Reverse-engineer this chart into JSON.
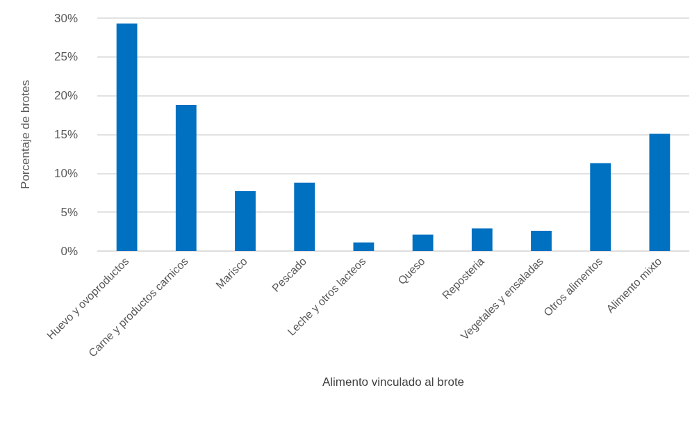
{
  "chart_data": {
    "type": "bar",
    "xlabel": "Alimento vinculado al brote",
    "ylabel": "Porcentaje de brotes",
    "categories": [
      "Huevo y ovoproductos",
      "Carne y productos carnicos",
      "Marisco",
      "Pescado",
      "Leche y otros lacteos",
      "Queso",
      "Reposteria",
      "Vegetales y ensaladas",
      "Otros alimentos",
      "Alimento mixto"
    ],
    "values": [
      29.3,
      18.8,
      7.7,
      8.8,
      1.1,
      2.1,
      2.9,
      2.6,
      11.3,
      15.1
    ],
    "color": "#0070c0",
    "ylim": [
      0,
      30
    ],
    "yticks": [
      {
        "value": 0,
        "label": "0%"
      },
      {
        "value": 5,
        "label": "5%"
      },
      {
        "value": 10,
        "label": "10%"
      },
      {
        "value": 15,
        "label": "15%"
      },
      {
        "value": 20,
        "label": "20%"
      },
      {
        "value": 25,
        "label": "25%"
      },
      {
        "value": 30,
        "label": "30%"
      }
    ],
    "grid": "y"
  }
}
